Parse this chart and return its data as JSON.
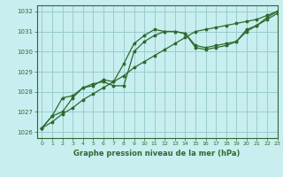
{
  "title": "Graphe pression niveau de la mer (hPa)",
  "bg_color": "#c8eef0",
  "grid_color": "#99cccc",
  "line_color": "#2d6a2d",
  "xlim": [
    -0.5,
    23
  ],
  "ylim": [
    1025.7,
    1032.3
  ],
  "xticks": [
    0,
    1,
    2,
    3,
    4,
    5,
    6,
    7,
    8,
    9,
    10,
    11,
    12,
    13,
    14,
    15,
    16,
    17,
    18,
    19,
    20,
    21,
    22,
    23
  ],
  "yticks": [
    1026,
    1027,
    1028,
    1029,
    1030,
    1031,
    1032
  ],
  "line1_x": [
    0,
    1,
    2,
    3,
    4,
    5,
    6,
    7,
    8,
    9,
    10,
    11,
    12,
    13,
    14,
    15,
    16,
    17,
    18,
    19,
    20,
    21,
    22,
    23
  ],
  "line1_y": [
    1026.2,
    1026.5,
    1026.9,
    1027.2,
    1027.6,
    1027.9,
    1028.2,
    1028.5,
    1028.8,
    1029.2,
    1029.5,
    1029.8,
    1030.1,
    1030.4,
    1030.7,
    1031.0,
    1031.1,
    1031.2,
    1031.3,
    1031.4,
    1031.5,
    1031.6,
    1031.8,
    1032.0
  ],
  "line2_x": [
    0,
    1,
    2,
    3,
    4,
    5,
    6,
    7,
    8,
    9,
    10,
    11,
    12,
    13,
    14,
    15,
    16,
    17,
    18,
    19,
    20,
    21,
    22,
    23
  ],
  "line2_y": [
    1026.2,
    1026.8,
    1027.7,
    1027.8,
    1028.2,
    1028.3,
    1028.6,
    1028.5,
    1029.4,
    1030.4,
    1030.8,
    1031.1,
    1031.0,
    1031.0,
    1030.9,
    1030.3,
    1030.2,
    1030.3,
    1030.4,
    1030.5,
    1031.1,
    1031.3,
    1031.6,
    1031.9
  ],
  "line3_x": [
    0,
    1,
    2,
    3,
    4,
    5,
    6,
    7,
    8,
    9,
    10,
    11,
    12,
    13,
    14,
    15,
    16,
    17,
    18,
    19,
    20,
    21,
    22,
    23
  ],
  "line3_y": [
    1026.2,
    1026.8,
    1027.0,
    1027.7,
    1028.2,
    1028.4,
    1028.5,
    1028.3,
    1028.3,
    1030.0,
    1030.5,
    1030.8,
    1031.0,
    1031.0,
    1030.9,
    1030.2,
    1030.1,
    1030.2,
    1030.3,
    1030.5,
    1031.0,
    1031.3,
    1031.7,
    1032.0
  ]
}
